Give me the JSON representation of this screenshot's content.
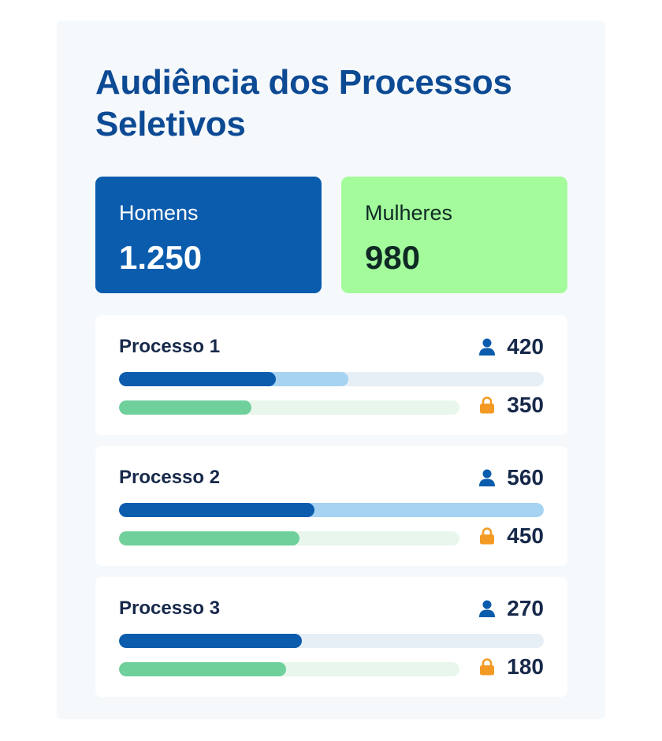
{
  "title": "Audiência dos Processos Seletivos",
  "totals": {
    "men": {
      "label": "Homens",
      "value": "1.250"
    },
    "women": {
      "label": "Mulheres",
      "value": "980"
    }
  },
  "icons": {
    "men": "person-icon",
    "women": "lock-icon"
  },
  "colors": {
    "men_primary": "#0b5cad",
    "men_secondary": "#a6d3f2",
    "women_fill": "#6fd09c",
    "women_card": "#a3fb9b",
    "women_icon": "#f39a24"
  },
  "processes": [
    {
      "name": "Processo 1",
      "men": "420",
      "women": "350",
      "men_dark_pct": 37,
      "men_light_pct": 54,
      "women_pct": 39
    },
    {
      "name": "Processo 2",
      "men": "560",
      "women": "450",
      "men_dark_pct": 46,
      "men_light_pct": 100,
      "women_pct": 53
    },
    {
      "name": "Processo 3",
      "men": "270",
      "women": "180",
      "men_dark_pct": 43,
      "men_light_pct": 0,
      "women_pct": 49
    }
  ]
}
